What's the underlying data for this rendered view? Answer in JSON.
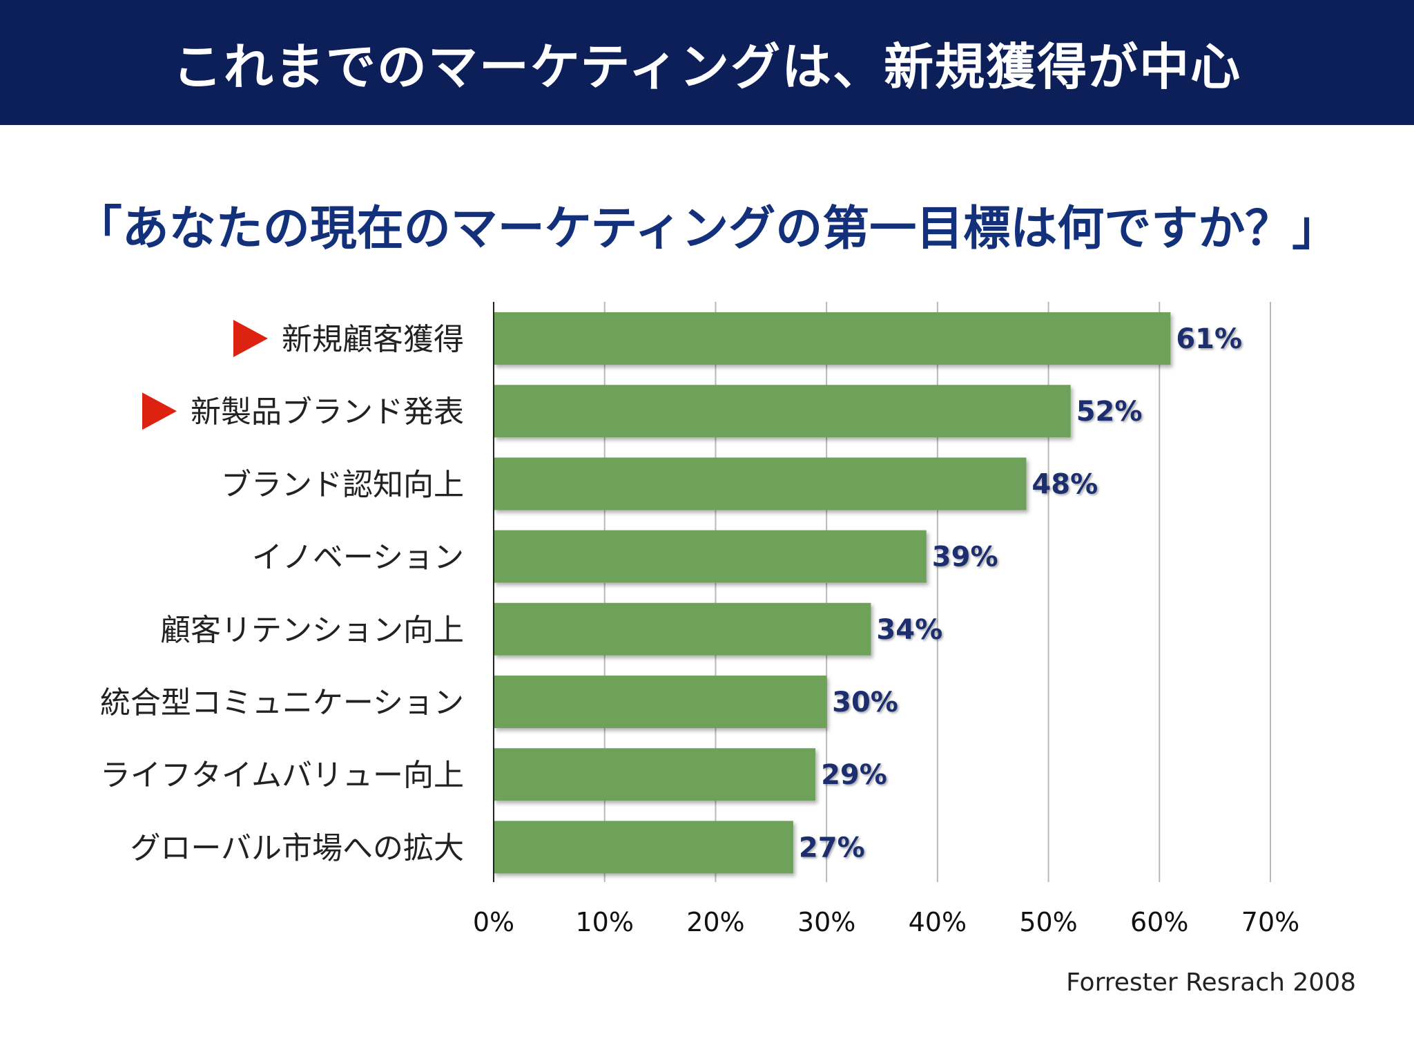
{
  "header": {
    "title": "これまでのマーケティングは、新規獲得が中心"
  },
  "question": "「あなたの現在のマーケティングの第一目標は何ですか？」",
  "source": "Forrester Resrach 2008",
  "colors": {
    "header_bg": "#0d1f59",
    "question_text": "#13307a",
    "bar": "#6ea25a",
    "value_label": "#1b2f6e",
    "marker": "#dd2211"
  },
  "icons": {
    "highlight_marker": "red-triangle-icon"
  },
  "chart_data": {
    "type": "bar",
    "orientation": "horizontal",
    "categories": [
      "新規顧客獲得",
      "新製品ブランド発表",
      "ブランド認知向上",
      "イノベーション",
      "顧客リテンション向上",
      "統合型コミュニケーション",
      "ライフタイムバリュー向上",
      "グローバル市場への拡大"
    ],
    "values": [
      61,
      52,
      48,
      39,
      34,
      30,
      29,
      27
    ],
    "value_labels": [
      "61%",
      "52%",
      "48%",
      "39%",
      "34%",
      "30%",
      "29%",
      "27%"
    ],
    "highlighted": [
      true,
      true,
      false,
      false,
      false,
      false,
      false,
      false
    ],
    "xlim": [
      0,
      70
    ],
    "xticks": [
      0,
      10,
      20,
      30,
      40,
      50,
      60,
      70
    ],
    "xtick_labels": [
      "0%",
      "10%",
      "20%",
      "30%",
      "40%",
      "50%",
      "60%",
      "70%"
    ],
    "grid": true,
    "legend": false
  }
}
